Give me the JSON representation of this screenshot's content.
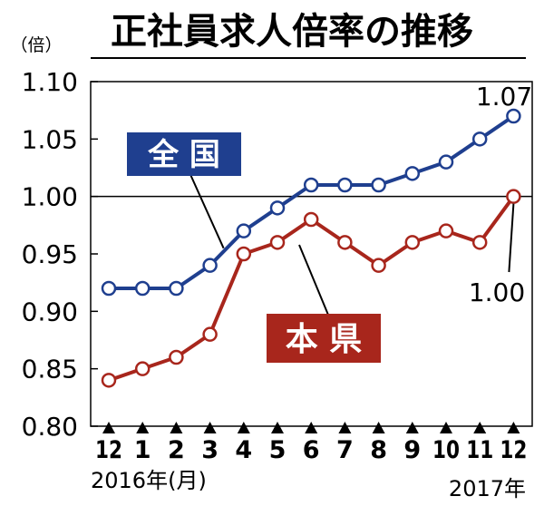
{
  "chart_data": {
    "type": "line",
    "title": "正社員求人倍率の推移",
    "ylabel": "（倍）",
    "ylim": [
      0.8,
      1.1
    ],
    "yticks": [
      "1.10",
      "1.05",
      "1.00",
      "0.95",
      "0.90",
      "0.85",
      "0.80"
    ],
    "reference_line": 1.0,
    "categories": [
      "12",
      "1",
      "2",
      "3",
      "4",
      "5",
      "6",
      "7",
      "8",
      "9",
      "10",
      "11",
      "12"
    ],
    "year_labels": {
      "start": "2016年",
      "unit": "(月)",
      "end": "2017年"
    },
    "grid": false,
    "series": [
      {
        "name": "全 国",
        "color": "#1f3f8f",
        "values": [
          0.92,
          0.92,
          0.92,
          0.94,
          0.97,
          0.99,
          1.01,
          1.01,
          1.01,
          1.02,
          1.03,
          1.05,
          1.07
        ],
        "end_label": "1.07"
      },
      {
        "name": "本 県",
        "color": "#a8261c",
        "values": [
          0.84,
          0.85,
          0.86,
          0.88,
          0.95,
          0.96,
          0.98,
          0.96,
          0.94,
          0.96,
          0.97,
          0.96,
          1.0
        ],
        "end_label": "1.00"
      }
    ]
  }
}
